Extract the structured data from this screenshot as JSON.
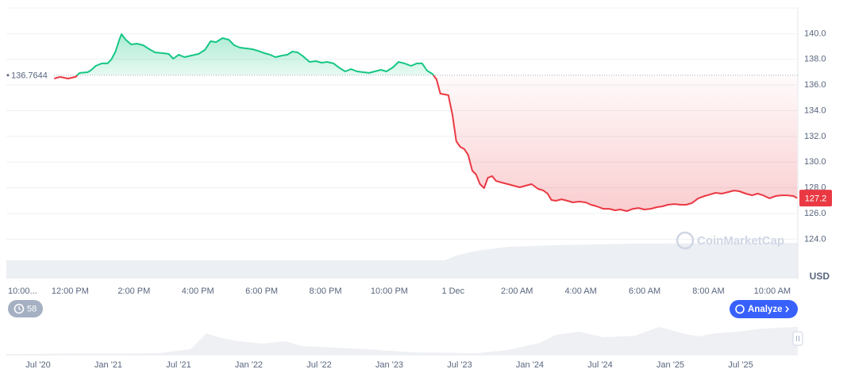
{
  "chart_data": {
    "type": "line",
    "baseline": {
      "value": 136.7644,
      "label": "136.7644"
    },
    "last_price": {
      "value": 127.2,
      "label": "127.2"
    },
    "currency": "USD",
    "watermark": "CoinMarketCap",
    "colors": {
      "up": "#16c784",
      "down": "#ea3943"
    },
    "xlim": [
      10,
      34.8
    ],
    "xticks": [
      {
        "value": 10,
        "label": "10:00..."
      },
      {
        "value": 12,
        "label": "12:00 PM"
      },
      {
        "value": 14,
        "label": "2:00 PM"
      },
      {
        "value": 16,
        "label": "4:00 PM"
      },
      {
        "value": 18,
        "label": "6:00 PM"
      },
      {
        "value": 20,
        "label": "8:00 PM"
      },
      {
        "value": 22,
        "label": "10:00 PM"
      },
      {
        "value": 24,
        "label": "1 Dec"
      },
      {
        "value": 26,
        "label": "2:00 AM"
      },
      {
        "value": 28,
        "label": "4:00 AM"
      },
      {
        "value": 30,
        "label": "6:00 AM"
      },
      {
        "value": 32,
        "label": "8:00 AM"
      },
      {
        "value": 34,
        "label": "10:00 AM"
      }
    ],
    "ylim": [
      121,
      142
    ],
    "yticks": [
      {
        "value": 124,
        "label": "124.0"
      },
      {
        "value": 126,
        "label": "126.0"
      },
      {
        "value": 128,
        "label": "128.0"
      },
      {
        "value": 130,
        "label": "130.0"
      },
      {
        "value": 132,
        "label": "132.0"
      },
      {
        "value": 134,
        "label": "134.0"
      },
      {
        "value": 136,
        "label": "136.0"
      },
      {
        "value": 138,
        "label": "138.0"
      },
      {
        "value": 140,
        "label": "140.0"
      }
    ],
    "grid": true,
    "x": [
      11.5,
      11.68,
      11.93,
      12.17,
      12.3,
      12.55,
      12.67,
      12.8,
      12.99,
      13.17,
      13.29,
      13.42,
      13.54,
      13.61,
      13.74,
      13.91,
      14.09,
      14.29,
      14.48,
      14.66,
      14.91,
      15.09,
      15.23,
      15.4,
      15.58,
      15.78,
      16.02,
      16.22,
      16.4,
      16.57,
      16.77,
      16.97,
      17.14,
      17.32,
      17.52,
      17.71,
      17.89,
      18.09,
      18.26,
      18.43,
      18.63,
      18.81,
      18.96,
      19.13,
      19.3,
      19.5,
      19.7,
      19.88,
      20.05,
      20.25,
      20.45,
      20.62,
      20.8,
      20.99,
      21.19,
      21.37,
      21.54,
      21.74,
      21.91,
      22.11,
      22.29,
      22.48,
      22.68,
      22.86,
      23.03,
      23.18,
      23.35,
      23.48,
      23.6,
      23.73,
      23.85,
      23.98,
      24.1,
      24.22,
      24.35,
      24.47,
      24.6,
      24.72,
      24.84,
      24.97,
      25.09,
      25.22,
      25.34,
      25.52,
      25.71,
      25.91,
      26.09,
      26.26,
      26.46,
      26.66,
      26.83,
      26.96,
      27.08,
      27.21,
      27.4,
      27.58,
      27.75,
      27.95,
      28.15,
      28.32,
      28.5,
      28.7,
      28.89,
      29.07,
      29.24,
      29.44,
      29.64,
      29.81,
      29.99,
      30.19,
      30.39,
      30.56,
      30.73,
      30.93,
      31.13,
      31.3,
      31.48,
      31.68,
      31.88,
      32.05,
      32.22,
      32.42,
      32.62,
      32.8,
      32.97,
      33.17,
      33.37,
      33.54,
      33.71,
      33.91,
      34.11,
      34.29,
      34.46,
      34.66,
      34.78
    ],
    "values": [
      136.5,
      136.63,
      136.5,
      136.63,
      136.94,
      137.0,
      137.18,
      137.49,
      137.68,
      137.68,
      137.99,
      138.6,
      139.53,
      139.96,
      139.53,
      139.16,
      139.22,
      139.1,
      138.79,
      138.54,
      138.48,
      138.42,
      138.05,
      138.36,
      138.17,
      138.29,
      138.42,
      138.73,
      139.41,
      139.34,
      139.65,
      139.53,
      139.1,
      138.91,
      138.85,
      138.79,
      138.66,
      138.48,
      138.36,
      138.17,
      138.29,
      138.36,
      138.6,
      138.54,
      138.23,
      137.8,
      137.86,
      137.74,
      137.8,
      137.68,
      137.31,
      137.06,
      137.24,
      137.06,
      137.0,
      136.94,
      137.06,
      137.18,
      137.06,
      137.37,
      137.8,
      137.68,
      137.49,
      137.68,
      137.68,
      137.12,
      136.87,
      136.44,
      135.33,
      135.27,
      135.21,
      133.66,
      131.62,
      131.19,
      131.01,
      130.57,
      129.34,
      129.03,
      128.29,
      127.98,
      128.78,
      128.91,
      128.54,
      128.41,
      128.29,
      128.16,
      128.04,
      128.16,
      128.29,
      127.92,
      127.79,
      127.55,
      127.05,
      126.99,
      127.11,
      126.99,
      126.87,
      126.93,
      126.87,
      126.68,
      126.56,
      126.37,
      126.37,
      126.25,
      126.31,
      126.19,
      126.37,
      126.43,
      126.31,
      126.37,
      126.5,
      126.56,
      126.68,
      126.74,
      126.68,
      126.68,
      126.81,
      127.18,
      127.36,
      127.48,
      127.61,
      127.55,
      127.67,
      127.79,
      127.73,
      127.55,
      127.42,
      127.55,
      127.42,
      127.18,
      127.36,
      127.42,
      127.42,
      127.36,
      127.2
    ]
  },
  "toolbar": {
    "badge_count": "58",
    "analyze_button": "Analyze"
  },
  "navigator": {
    "labels": [
      "Jul '20",
      "Jan '21",
      "Jul '21",
      "Jan '22",
      "Jul '22",
      "Jan '23",
      "Jul '23",
      "Jan '24",
      "Jul '24",
      "Jan '25",
      "Jul '25"
    ]
  }
}
